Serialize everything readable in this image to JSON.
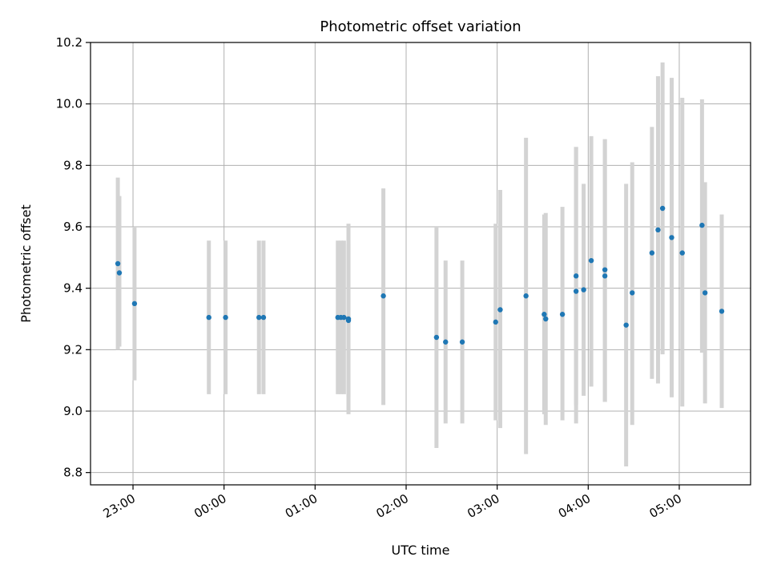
{
  "chart_data": {
    "type": "scatter",
    "title": "Photometric offset variation",
    "xlabel": "UTC time",
    "ylabel": "Photometric offset",
    "xlim": [
      "2000-01-01T22:32",
      "2000-01-02T05:47"
    ],
    "ylim": [
      8.76,
      10.2
    ],
    "x_ticks": [
      {
        "t": "2000-01-01T23:00",
        "label": "23:00"
      },
      {
        "t": "2000-01-02T00:00",
        "label": "00:00"
      },
      {
        "t": "2000-01-02T01:00",
        "label": "01:00"
      },
      {
        "t": "2000-01-02T02:00",
        "label": "02:00"
      },
      {
        "t": "2000-01-02T03:00",
        "label": "03:00"
      },
      {
        "t": "2000-01-02T04:00",
        "label": "04:00"
      },
      {
        "t": "2000-01-02T05:00",
        "label": "05:00"
      }
    ],
    "y_ticks": [
      {
        "v": 8.8,
        "label": "8.8"
      },
      {
        "v": 9.0,
        "label": "9.0"
      },
      {
        "v": 9.2,
        "label": "9.2"
      },
      {
        "v": 9.4,
        "label": "9.4"
      },
      {
        "v": 9.6,
        "label": "9.6"
      },
      {
        "v": 9.8,
        "label": "9.8"
      },
      {
        "v": 10.0,
        "label": "10.0"
      },
      {
        "v": 10.2,
        "label": "10.2"
      }
    ],
    "grid": true,
    "point_color": "#1f77b4",
    "errorbar_color": "#d3d3d3",
    "points": [
      {
        "t": "2000-01-01T22:50",
        "y": 9.48,
        "lo": 9.2,
        "hi": 9.76
      },
      {
        "t": "2000-01-01T22:51",
        "y": 9.45,
        "lo": 9.21,
        "hi": 9.7
      },
      {
        "t": "2000-01-01T23:01",
        "y": 9.35,
        "lo": 9.1,
        "hi": 9.6
      },
      {
        "t": "2000-01-01T23:50",
        "y": 9.305,
        "lo": 9.055,
        "hi": 9.555
      },
      {
        "t": "2000-01-02T00:01",
        "y": 9.305,
        "lo": 9.055,
        "hi": 9.555
      },
      {
        "t": "2000-01-02T00:23",
        "y": 9.305,
        "lo": 9.055,
        "hi": 9.555
      },
      {
        "t": "2000-01-02T00:26",
        "y": 9.305,
        "lo": 9.055,
        "hi": 9.555
      },
      {
        "t": "2000-01-02T01:15",
        "y": 9.305,
        "lo": 9.055,
        "hi": 9.555
      },
      {
        "t": "2000-01-02T01:17",
        "y": 9.305,
        "lo": 9.055,
        "hi": 9.555
      },
      {
        "t": "2000-01-02T01:19",
        "y": 9.305,
        "lo": 9.055,
        "hi": 9.555
      },
      {
        "t": "2000-01-02T01:22",
        "y": 9.295,
        "lo": 9.045,
        "hi": 9.545
      },
      {
        "t": "2000-01-02T01:22",
        "y": 9.3,
        "lo": 8.99,
        "hi": 9.61
      },
      {
        "t": "2000-01-02T01:45",
        "y": 9.375,
        "lo": 9.02,
        "hi": 9.725
      },
      {
        "t": "2000-01-02T02:20",
        "y": 9.24,
        "lo": 8.88,
        "hi": 9.6
      },
      {
        "t": "2000-01-02T02:26",
        "y": 9.225,
        "lo": 8.96,
        "hi": 9.49
      },
      {
        "t": "2000-01-02T02:37",
        "y": 9.225,
        "lo": 8.96,
        "hi": 9.49
      },
      {
        "t": "2000-01-02T02:59",
        "y": 9.29,
        "lo": 8.97,
        "hi": 9.61
      },
      {
        "t": "2000-01-02T03:02",
        "y": 9.33,
        "lo": 8.945,
        "hi": 9.72
      },
      {
        "t": "2000-01-02T03:19",
        "y": 9.375,
        "lo": 8.86,
        "hi": 9.89
      },
      {
        "t": "2000-01-02T03:31",
        "y": 9.315,
        "lo": 8.99,
        "hi": 9.64
      },
      {
        "t": "2000-01-02T03:32",
        "y": 9.3,
        "lo": 8.955,
        "hi": 9.645
      },
      {
        "t": "2000-01-02T03:43",
        "y": 9.315,
        "lo": 8.97,
        "hi": 9.665
      },
      {
        "t": "2000-01-02T03:52",
        "y": 9.39,
        "lo": 8.96,
        "hi": 9.86
      },
      {
        "t": "2000-01-02T03:52",
        "y": 9.44,
        "lo": 9.02,
        "hi": 9.86
      },
      {
        "t": "2000-01-02T03:57",
        "y": 9.395,
        "lo": 9.05,
        "hi": 9.74
      },
      {
        "t": "2000-01-02T04:02",
        "y": 9.49,
        "lo": 9.08,
        "hi": 9.895
      },
      {
        "t": "2000-01-02T04:11",
        "y": 9.44,
        "lo": 9.03,
        "hi": 9.885
      },
      {
        "t": "2000-01-02T04:11",
        "y": 9.46,
        "lo": 9.03,
        "hi": 9.885
      },
      {
        "t": "2000-01-02T04:25",
        "y": 9.28,
        "lo": 8.82,
        "hi": 9.74
      },
      {
        "t": "2000-01-02T04:29",
        "y": 9.385,
        "lo": 8.955,
        "hi": 9.81
      },
      {
        "t": "2000-01-02T04:42",
        "y": 9.515,
        "lo": 9.105,
        "hi": 9.925
      },
      {
        "t": "2000-01-02T04:46",
        "y": 9.59,
        "lo": 9.09,
        "hi": 10.09
      },
      {
        "t": "2000-01-02T04:49",
        "y": 9.66,
        "lo": 9.185,
        "hi": 10.135
      },
      {
        "t": "2000-01-02T04:55",
        "y": 9.565,
        "lo": 9.045,
        "hi": 10.085
      },
      {
        "t": "2000-01-02T05:02",
        "y": 9.515,
        "lo": 9.015,
        "hi": 10.02
      },
      {
        "t": "2000-01-02T05:15",
        "y": 9.605,
        "lo": 9.19,
        "hi": 10.015
      },
      {
        "t": "2000-01-02T05:17",
        "y": 9.385,
        "lo": 9.025,
        "hi": 9.745
      },
      {
        "t": "2000-01-02T05:28",
        "y": 9.325,
        "lo": 9.01,
        "hi": 9.64
      }
    ]
  }
}
